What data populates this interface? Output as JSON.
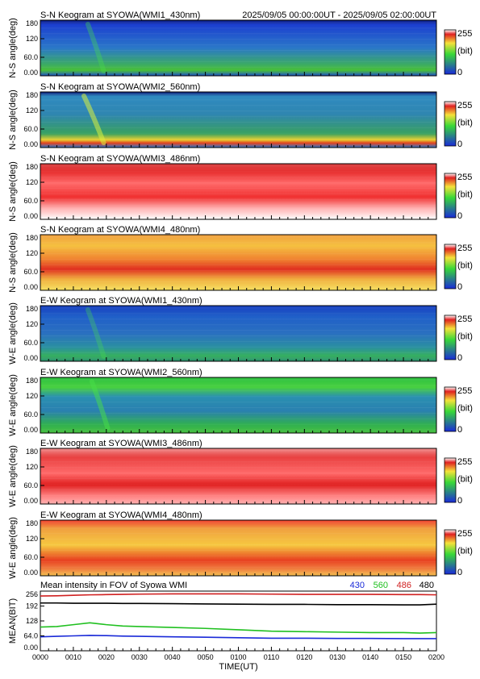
{
  "header": {
    "time_range": "2025/09/05 00:00:00UT - 2025/09/05 02:00:00UT"
  },
  "colorbar": {
    "max_label": "255",
    "unit_label": "(bit)",
    "min_label": "0"
  },
  "palette": {
    "blue": "#1a2ad8",
    "green": "#38d838",
    "yellow": "#f5e23a",
    "red": "#e02020",
    "white": "#ffffff"
  },
  "chart_data": [
    {
      "type": "heatmap",
      "title": "S-N Keogram at SYOWA(WMI1_430nm)",
      "ylabel": "N-S angle(deg)",
      "yticks": [
        "180",
        "120",
        "60.0",
        "0.00"
      ],
      "ylim": [
        0,
        180
      ],
      "xlim": [
        "0000",
        "0200"
      ],
      "scale": [
        0,
        255
      ],
      "background_level": 0.32,
      "feature": "green arc descending near 0015-0020 UT",
      "arc": {
        "start": 0.12,
        "end": 0.16,
        "strength": 0.35
      }
    },
    {
      "type": "heatmap",
      "title": "S-N Keogram at SYOWA(WMI2_560nm)",
      "ylabel": "N-S angle(deg)",
      "yticks": [
        "180",
        "120",
        "60.0",
        "0.00"
      ],
      "ylim": [
        0,
        180
      ],
      "xlim": [
        "0000",
        "0200"
      ],
      "scale": [
        0,
        255
      ],
      "background_level": 0.34,
      "feature": "bright green/yellow arc near 0010-0020 UT, red band at low angles",
      "arc": {
        "start": 0.11,
        "end": 0.16,
        "strength": 0.55
      }
    },
    {
      "type": "heatmap",
      "title": "S-N Keogram at SYOWA(WMI3_486nm)",
      "ylabel": "N-S angle(deg)",
      "yticks": [
        "180",
        "120",
        "60.0",
        "0.00"
      ],
      "ylim": [
        0,
        180
      ],
      "xlim": [
        "0000",
        "0200"
      ],
      "scale": [
        0,
        255
      ],
      "background_level": 0.9,
      "feature": "red saturated band, whitening toward 0 deg"
    },
    {
      "type": "heatmap",
      "title": "S-N Keogram at SYOWA(WMI4_480nm)",
      "ylabel": "N-S angle(deg)",
      "yticks": [
        "180",
        "120",
        "60.0",
        "0.00"
      ],
      "ylim": [
        0,
        180
      ],
      "xlim": [
        "0000",
        "0200"
      ],
      "scale": [
        0,
        255
      ],
      "background_level": 0.78,
      "feature": "orange/yellow band with red band near 60 deg"
    },
    {
      "type": "heatmap",
      "title": "E-W Keogram at SYOWA(WMI1_430nm)",
      "ylabel": "W-E angle(deg)",
      "yticks": [
        "180",
        "120",
        "60.0",
        "0.00"
      ],
      "ylim": [
        0,
        180
      ],
      "xlim": [
        "0000",
        "0200"
      ],
      "scale": [
        0,
        255
      ],
      "background_level": 0.32,
      "feature": "faint green arc near 0015 UT",
      "arc": {
        "start": 0.12,
        "end": 0.16,
        "strength": 0.3
      }
    },
    {
      "type": "heatmap",
      "title": "E-W Keogram at SYOWA(WMI2_560nm)",
      "ylabel": "W-E angle(deg)",
      "yticks": [
        "180",
        "120",
        "60.0",
        "0.00"
      ],
      "ylim": [
        0,
        180
      ],
      "xlim": [
        "0000",
        "0200"
      ],
      "scale": [
        0,
        255
      ],
      "background_level": 0.38,
      "feature": "green arc near 0015-0025 UT",
      "arc": {
        "start": 0.13,
        "end": 0.17,
        "strength": 0.5
      }
    },
    {
      "type": "heatmap",
      "title": "E-W Keogram at SYOWA(WMI3_486nm)",
      "ylabel": "W-E angle(deg)",
      "yticks": [
        "180",
        "120",
        "60.0",
        "0.00"
      ],
      "ylim": [
        0,
        180
      ],
      "xlim": [
        "0000",
        "0200"
      ],
      "scale": [
        0,
        255
      ],
      "background_level": 0.9,
      "feature": "red saturated band near 80 deg"
    },
    {
      "type": "heatmap",
      "title": "E-W Keogram at SYOWA(WMI4_480nm)",
      "ylabel": "W-E angle(deg)",
      "yticks": [
        "180",
        "120",
        "60.0",
        "0.00"
      ],
      "ylim": [
        0,
        180
      ],
      "xlim": [
        "0000",
        "0200"
      ],
      "scale": [
        0,
        255
      ],
      "background_level": 0.78,
      "feature": "orange/yellow band with red band near 40 deg"
    },
    {
      "type": "line",
      "title": "Mean intensity in FOV of Syowa WMI",
      "xlabel": "TIME(UT)",
      "ylabel": "MEAN(BIT)",
      "xlim": [
        0,
        120
      ],
      "ylim": [
        0,
        256
      ],
      "x_tick_labels": [
        "0000",
        "0010",
        "0020",
        "0030",
        "0040",
        "0050",
        "0100",
        "0110",
        "0120",
        "0130",
        "0140",
        "0150",
        "0200"
      ],
      "y_tick_labels": [
        "256",
        "192",
        "128",
        "64.0",
        "0.00"
      ],
      "x": [
        0,
        5,
        10,
        15,
        20,
        25,
        30,
        40,
        50,
        60,
        70,
        80,
        90,
        100,
        110,
        115,
        120
      ],
      "series": [
        {
          "name": "430",
          "color": "#1a2ad8",
          "values": [
            60,
            62,
            64,
            66,
            65,
            63,
            62,
            60,
            58,
            56,
            54,
            54,
            53,
            53,
            52,
            52,
            52
          ]
        },
        {
          "name": "560",
          "color": "#20c020",
          "values": [
            102,
            104,
            112,
            120,
            112,
            106,
            104,
            100,
            96,
            90,
            84,
            82,
            80,
            78,
            78,
            76,
            78
          ]
        },
        {
          "name": "486",
          "color": "#d02020",
          "values": [
            235,
            236,
            238,
            240,
            241,
            242,
            243,
            244,
            244,
            244,
            243,
            242,
            242,
            242,
            241,
            241,
            240
          ]
        },
        {
          "name": "480",
          "color": "#000000",
          "values": [
            205,
            205,
            204,
            204,
            204,
            203,
            203,
            202,
            201,
            200,
            199,
            199,
            198,
            198,
            197,
            197,
            200
          ]
        }
      ]
    }
  ]
}
